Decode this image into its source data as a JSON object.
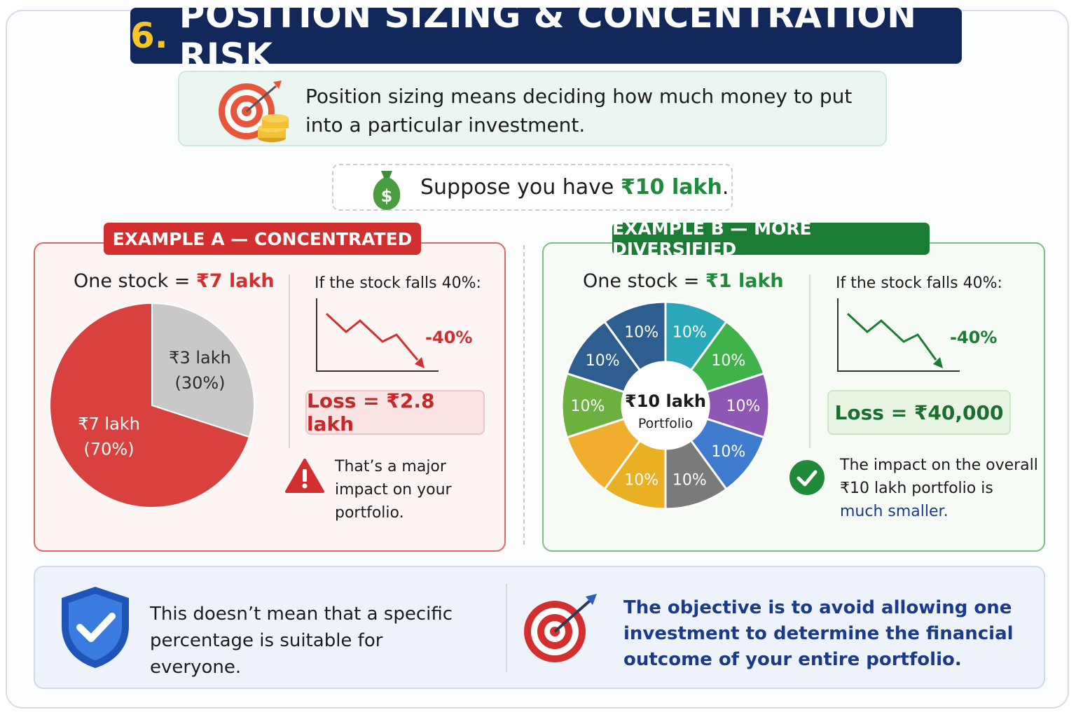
{
  "title": {
    "number": "6.",
    "text": "POSITION SIZING & CONCENTRATION RISK"
  },
  "definition": {
    "icon": "target-coins-icon",
    "text": "Position sizing means deciding how much money to put into a particular investment."
  },
  "suppose": {
    "icon": "money-bag-icon",
    "prefix": "Suppose you have ",
    "amount": "₹10 lakh",
    "suffix": "."
  },
  "example_a": {
    "tag": "EXAMPLE A — CONCENTRATED",
    "stock_prefix": "One stock = ",
    "stock_amount": "₹7 lakh",
    "falls_text": "If the stock falls 40%:",
    "drop_pct": "-40%",
    "loss": "Loss = ₹2.8 lakh",
    "warning_icon": "warning-icon",
    "note": "That’s a major impact on your portfolio.",
    "colors": {
      "accent": "#d32f2f",
      "main_slice": "#d9413f",
      "rest_slice": "#c8c8c8"
    }
  },
  "example_b": {
    "tag": "EXAMPLE B — MORE DIVERSIFIED",
    "stock_prefix": "One stock = ",
    "stock_amount": "₹1 lakh",
    "falls_text": "If the stock falls 40%:",
    "drop_pct": "-40%",
    "loss": "Loss = ₹40,000",
    "check_icon": "check-circle-icon",
    "note_line1": "The impact on the overall",
    "note_line2": "₹10 lakh portfolio is",
    "note_line3": "much smaller.",
    "colors": {
      "accent": "#1b7d34"
    }
  },
  "chart_data": [
    {
      "type": "pie",
      "categories": [
        "₹7 lakh",
        "₹3 lakh"
      ],
      "values": [
        70,
        30
      ],
      "slice_labels": [
        {
          "line1": "₹7 lakh",
          "line2": "(70%)"
        },
        {
          "line1": "₹3 lakh",
          "line2": "(30%)"
        }
      ],
      "colors": [
        "#d9413f",
        "#c8c8c8"
      ]
    },
    {
      "type": "pie",
      "subtype": "donut",
      "center_label": {
        "line1": "₹10 lakh",
        "line2": "Portfolio"
      },
      "values": [
        10,
        10,
        10,
        10,
        10,
        10,
        10,
        10,
        10,
        10
      ],
      "slice_labels": [
        "10%",
        "10%",
        "10%",
        "10%",
        "10%",
        "10%",
        "",
        "10%",
        "10%",
        "10%"
      ],
      "colors": [
        "#2aa7b8",
        "#3fb24a",
        "#8e56b5",
        "#3f7bcf",
        "#7a7a7a",
        "#e8b022",
        "#f0ad2e",
        "#6cb13f",
        "#2d5e8f",
        "#2d5e8f"
      ]
    }
  ],
  "bottom": {
    "left_icon": "shield-check-icon",
    "left_text": "This doesn’t mean that a specific percentage is suitable for everyone.",
    "right_icon": "target-icon",
    "right_text": "The objective is to avoid allowing one investment to determine the financial outcome of your entire portfolio."
  }
}
